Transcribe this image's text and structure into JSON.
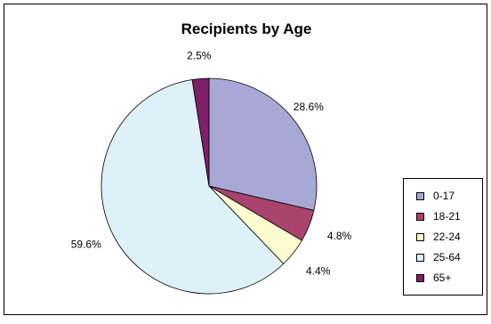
{
  "chart_data": {
    "type": "pie",
    "title": "Recipients by Age",
    "slices": [
      {
        "label": "0-17",
        "value": 28.6,
        "display": "28.6%",
        "color": "#a9a8d5"
      },
      {
        "label": "18-21",
        "value": 4.8,
        "display": "4.8%",
        "color": "#a8446e"
      },
      {
        "label": "22-24",
        "value": 4.4,
        "display": "4.4%",
        "color": "#fdfbd0"
      },
      {
        "label": "25-64",
        "value": 59.6,
        "display": "59.6%",
        "color": "#dff1f8"
      },
      {
        "label": "65+",
        "value": 2.5,
        "display": "2.5%",
        "color": "#7d2067"
      }
    ],
    "legend_position": "right"
  }
}
